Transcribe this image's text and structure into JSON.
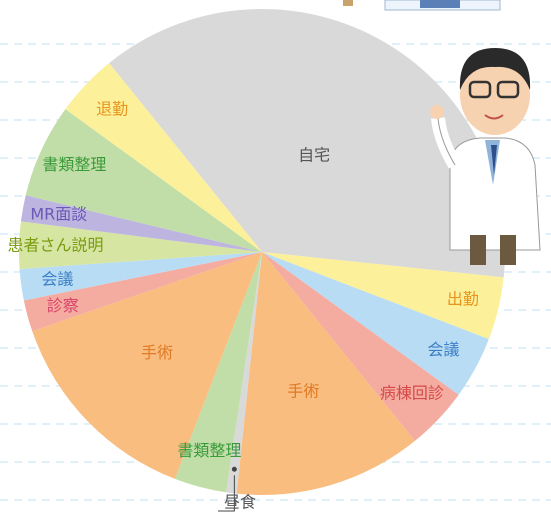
{
  "chart_data": {
    "type": "pie",
    "categories": [
      "自宅",
      "出勤",
      "会議",
      "病棟回診",
      "手術",
      "昼食",
      "書類整理",
      "手術",
      "診察",
      "会議",
      "患者さん説明",
      "MR面談",
      "書類整理",
      "退勤"
    ],
    "values": [
      540,
      60,
      60,
      60,
      180,
      10,
      50,
      200,
      30,
      30,
      45,
      25,
      90,
      60
    ],
    "colors": [
      "#d9d9d9",
      "#fdf09a",
      "#b9dcf5",
      "#f4aba0",
      "#f9bd80",
      "#d9d9d9",
      "#c1dea8",
      "#f9bd80",
      "#f4aba0",
      "#b9dcf5",
      "#d6e6a2",
      "#bdb4e0",
      "#c1dea8",
      "#fdf09a"
    ],
    "label_colors": [
      "#555555",
      "#e8951e",
      "#3a7fc4",
      "#d64a4a",
      "#e07a25",
      "#555555",
      "#3a9a3a",
      "#e07a25",
      "#d8446a",
      "#3a7fc4",
      "#7a9a10",
      "#6a5ab5",
      "#3a9a3a",
      "#e8951e"
    ]
  }
}
